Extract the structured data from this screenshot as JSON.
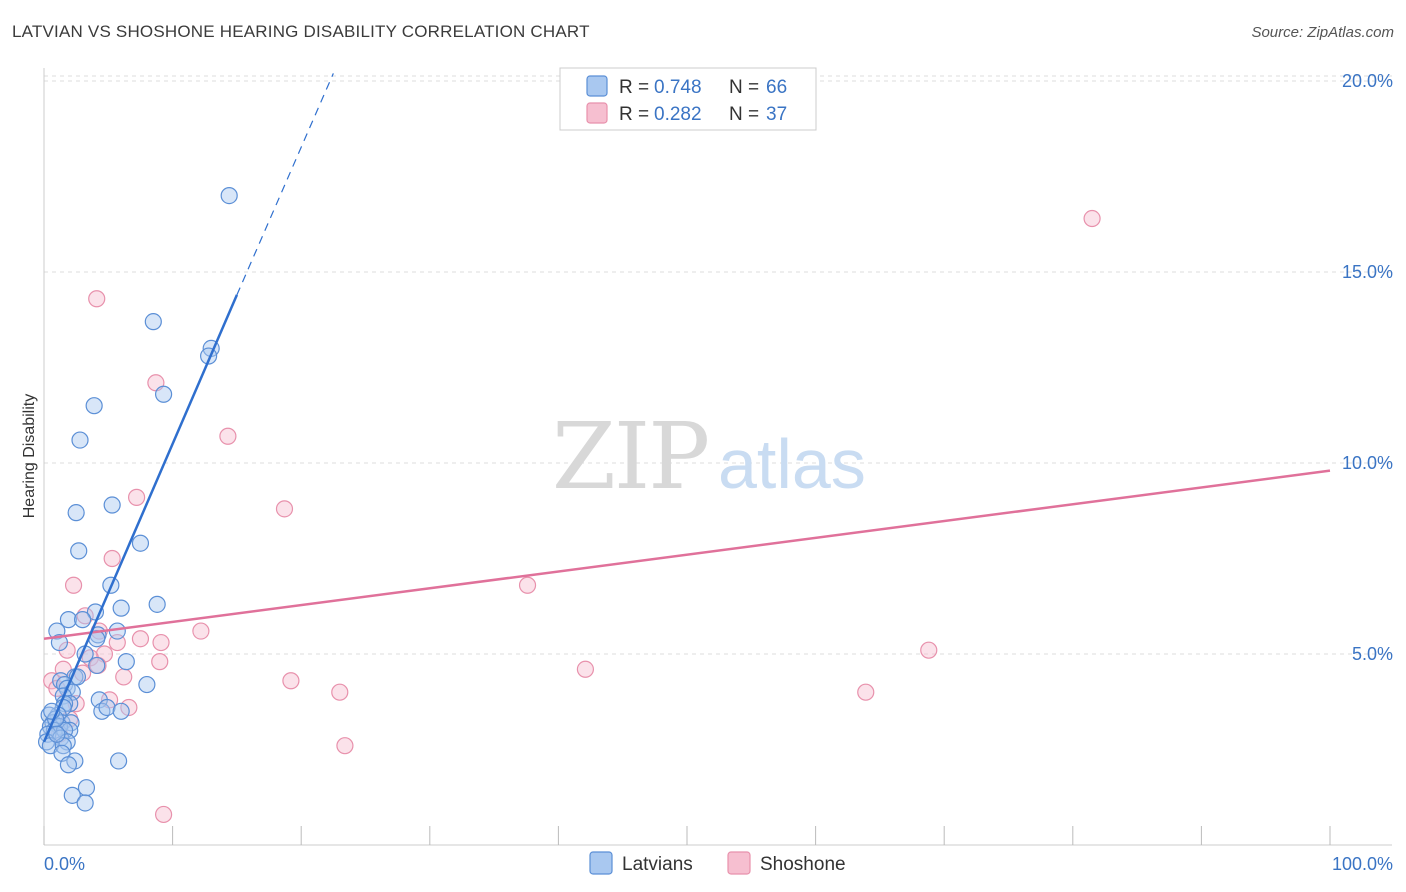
{
  "header": {
    "title": "LATVIAN VS SHOSHONE HEARING DISABILITY CORRELATION CHART",
    "source": "Source: ZipAtlas.com"
  },
  "watermark": {
    "zip": "ZIP",
    "atlas": "atlas"
  },
  "colors": {
    "latvians_fill": "#a9c8f0",
    "latvians_stroke": "#5b8fd6",
    "latvians_line": "#2f6fce",
    "shoshone_fill": "#f6bfd0",
    "shoshone_stroke": "#e891ac",
    "shoshone_line": "#e0719a",
    "grid": "#dddddd",
    "tick_text": "#3a74c4"
  },
  "legend": {
    "rows": [
      {
        "r_label": "R = ",
        "r_value": "0.748",
        "n_label": "N = ",
        "n_value": "66"
      },
      {
        "r_label": "R = ",
        "r_value": "0.282",
        "n_label": "N = ",
        "n_value": "37"
      }
    ]
  },
  "bottom_legend": {
    "latvians": "Latvians",
    "shoshone": "Shoshone"
  },
  "chart_data": {
    "type": "scatter",
    "title": "LATVIAN VS SHOSHONE HEARING DISABILITY CORRELATION CHART",
    "xlabel": "",
    "ylabel": "Hearing Disability",
    "xlim": [
      0,
      100
    ],
    "ylim": [
      0,
      20.5
    ],
    "x_tick_labels": [
      "0.0%",
      "100.0%"
    ],
    "y_ticks": [
      5,
      10,
      15,
      20
    ],
    "y_tick_labels": [
      "5.0%",
      "10.0%",
      "15.0%",
      "20.0%"
    ],
    "grid": true,
    "legend_position": "top-center",
    "series": [
      {
        "name": "Latvians",
        "r": 0.748,
        "n": 66,
        "trend": {
          "x0": 0,
          "y0": 2.7,
          "x1": 15.0,
          "y1": 14.4,
          "dashed_to_x": 22.5,
          "dashed_to_y": 20.2
        },
        "points": [
          [
            14.4,
            17.0
          ],
          [
            8.5,
            13.7
          ],
          [
            13.0,
            13.0
          ],
          [
            12.8,
            12.8
          ],
          [
            9.3,
            11.8
          ],
          [
            3.9,
            11.5
          ],
          [
            2.8,
            10.6
          ],
          [
            5.3,
            8.9
          ],
          [
            2.5,
            8.7
          ],
          [
            7.5,
            7.9
          ],
          [
            2.7,
            7.7
          ],
          [
            5.2,
            6.8
          ],
          [
            8.8,
            6.3
          ],
          [
            6.0,
            6.2
          ],
          [
            4.0,
            6.1
          ],
          [
            1.9,
            5.9
          ],
          [
            3.0,
            5.9
          ],
          [
            1.0,
            5.6
          ],
          [
            5.7,
            5.6
          ],
          [
            4.2,
            5.5
          ],
          [
            4.1,
            5.4
          ],
          [
            1.2,
            5.3
          ],
          [
            3.2,
            5.0
          ],
          [
            6.4,
            4.8
          ],
          [
            4.1,
            4.7
          ],
          [
            2.4,
            4.4
          ],
          [
            2.6,
            4.4
          ],
          [
            1.3,
            4.3
          ],
          [
            1.6,
            4.2
          ],
          [
            8.0,
            4.2
          ],
          [
            1.8,
            4.1
          ],
          [
            2.2,
            4.0
          ],
          [
            1.5,
            3.9
          ],
          [
            2.0,
            3.7
          ],
          [
            1.6,
            3.7
          ],
          [
            1.5,
            3.6
          ],
          [
            4.3,
            3.8
          ],
          [
            4.5,
            3.5
          ],
          [
            4.9,
            3.6
          ],
          [
            6.0,
            3.5
          ],
          [
            1.1,
            3.4
          ],
          [
            0.4,
            3.4
          ],
          [
            0.7,
            3.2
          ],
          [
            1.4,
            3.2
          ],
          [
            2.1,
            3.2
          ],
          [
            0.5,
            3.1
          ],
          [
            1.2,
            3.1
          ],
          [
            0.8,
            3.0
          ],
          [
            2.0,
            3.0
          ],
          [
            1.6,
            3.0
          ],
          [
            0.3,
            2.9
          ],
          [
            1.3,
            2.8
          ],
          [
            1.8,
            2.7
          ],
          [
            0.2,
            2.7
          ],
          [
            0.5,
            2.6
          ],
          [
            1.5,
            2.6
          ],
          [
            1.4,
            2.4
          ],
          [
            2.4,
            2.2
          ],
          [
            5.8,
            2.2
          ],
          [
            1.9,
            2.1
          ],
          [
            3.3,
            1.5
          ],
          [
            2.2,
            1.3
          ],
          [
            3.2,
            1.1
          ],
          [
            0.9,
            3.3
          ],
          [
            0.6,
            3.5
          ],
          [
            1.0,
            2.9
          ]
        ]
      },
      {
        "name": "Shoshone",
        "r": 0.282,
        "n": 37,
        "trend": {
          "x0": 0,
          "y0": 5.4,
          "x1": 100,
          "y1": 9.8
        },
        "points": [
          [
            81.5,
            16.4
          ],
          [
            4.1,
            14.3
          ],
          [
            8.7,
            12.1
          ],
          [
            14.3,
            10.7
          ],
          [
            7.2,
            9.1
          ],
          [
            18.7,
            8.8
          ],
          [
            5.3,
            7.5
          ],
          [
            2.3,
            6.8
          ],
          [
            37.6,
            6.8
          ],
          [
            3.2,
            6.0
          ],
          [
            12.2,
            5.6
          ],
          [
            4.3,
            5.6
          ],
          [
            7.5,
            5.4
          ],
          [
            9.1,
            5.3
          ],
          [
            5.7,
            5.3
          ],
          [
            1.8,
            5.1
          ],
          [
            68.8,
            5.1
          ],
          [
            4.7,
            5.0
          ],
          [
            3.6,
            4.9
          ],
          [
            9.0,
            4.8
          ],
          [
            4.2,
            4.7
          ],
          [
            1.5,
            4.6
          ],
          [
            42.1,
            4.6
          ],
          [
            3.0,
            4.5
          ],
          [
            6.2,
            4.4
          ],
          [
            0.6,
            4.3
          ],
          [
            19.2,
            4.3
          ],
          [
            1.0,
            4.1
          ],
          [
            23.0,
            4.0
          ],
          [
            63.9,
            4.0
          ],
          [
            5.1,
            3.8
          ],
          [
            2.5,
            3.7
          ],
          [
            6.6,
            3.6
          ],
          [
            2.0,
            3.3
          ],
          [
            23.4,
            2.6
          ],
          [
            1.2,
            2.9
          ],
          [
            9.3,
            0.8
          ]
        ]
      }
    ]
  }
}
